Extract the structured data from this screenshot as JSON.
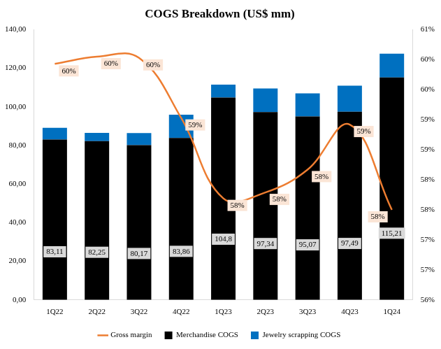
{
  "chart_data": {
    "type": "bar",
    "title": "COGS Breakdown (US$ mm)",
    "categories": [
      "1Q22",
      "2Q22",
      "3Q22",
      "4Q22",
      "1Q23",
      "2Q23",
      "3Q23",
      "4Q23",
      "1Q24"
    ],
    "stacked": true,
    "grid": false,
    "legend": "bottom",
    "series": [
      {
        "name": "Merchandise COGS",
        "type": "bar",
        "color": "#000000",
        "values": [
          83.11,
          82.25,
          80.17,
          83.86,
          104.8,
          97.34,
          95.07,
          97.49,
          115.21
        ],
        "value_labels": [
          "83,11",
          "82,25",
          "80,17",
          "83,86",
          "104,8",
          "97,34",
          "95,07",
          "97,49",
          "115,21"
        ],
        "data_labels": true
      },
      {
        "name": "Jewelry scrapping COGS",
        "type": "bar",
        "color": "#0070c0",
        "values": [
          6.0,
          4.3,
          6.3,
          12.1,
          6.7,
          12.2,
          11.9,
          13.5,
          12.3
        ],
        "data_labels": false
      },
      {
        "name": "Gross margin",
        "type": "line",
        "color": "#ed7d31",
        "axis": "y2",
        "values": [
          59.93,
          60.05,
          60.03,
          59.03,
          57.69,
          57.79,
          58.17,
          58.92,
          57.5
        ],
        "value_labels": [
          "60%",
          "60%",
          "60%",
          "59%",
          "58%",
          "58%",
          "58%",
          "59%",
          "58%"
        ],
        "data_labels": true
      }
    ],
    "ylim": [
      0,
      140
    ],
    "yticks": [
      {
        "value": 0,
        "label": "0,00"
      },
      {
        "value": 20,
        "label": "20,00"
      },
      {
        "value": 40,
        "label": "40,00"
      },
      {
        "value": 60,
        "label": "60,00"
      },
      {
        "value": 80,
        "label": "80,00"
      },
      {
        "value": 100,
        "label": "100,00"
      },
      {
        "value": 120,
        "label": "120,00"
      },
      {
        "value": 140,
        "label": "140,00"
      }
    ],
    "y2lim": [
      56,
      60.5
    ],
    "y2ticks": [
      {
        "value": 56,
        "label": "56%"
      },
      {
        "value": 56.5,
        "label": "57%"
      },
      {
        "value": 57,
        "label": "57%"
      },
      {
        "value": 57.5,
        "label": "58%"
      },
      {
        "value": 58,
        "label": "58%"
      },
      {
        "value": 58.5,
        "label": "59%"
      },
      {
        "value": 59,
        "label": "59%"
      },
      {
        "value": 59.5,
        "label": "60%"
      },
      {
        "value": 60,
        "label": "60%"
      },
      {
        "value": 60.5,
        "label": "61%"
      }
    ]
  }
}
